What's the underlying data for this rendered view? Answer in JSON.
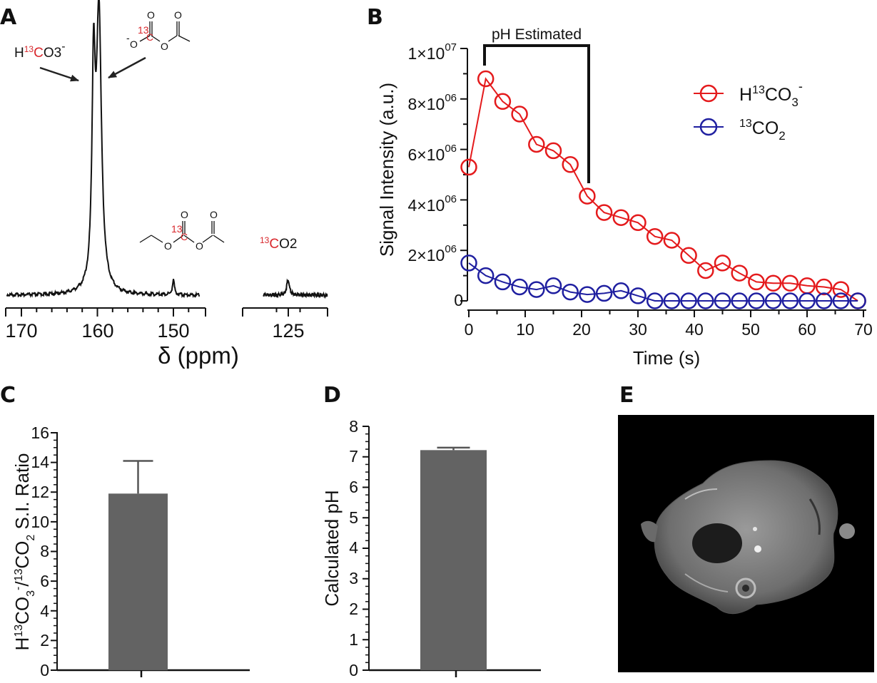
{
  "chart_data": [
    {
      "id": "A",
      "type": "line",
      "panel_label": "A",
      "title": "",
      "xlabel": "δ (ppm)",
      "ylabel": "",
      "x_ticks": [
        "170",
        "160",
        "150",
        "125"
      ],
      "x_segments": [
        [
          172,
          146
        ],
        [
          136,
          116
        ]
      ],
      "grid": false,
      "peaks": [
        {
          "ppm": 160.5,
          "height": 0.74,
          "width": 0.25
        },
        {
          "ppm": 159.8,
          "height": 1.0,
          "width": 0.4
        },
        {
          "ppm": 150.0,
          "height": 0.055,
          "width": 0.15
        },
        {
          "ppm": 125.1,
          "height": 0.055,
          "width": 0.7
        }
      ],
      "annotations": {
        "bicarbonate": {
          "prefix": "H",
          "iso": "13",
          "label_c": "C",
          "label_o3": "O3",
          "charge": "-"
        },
        "co2": {
          "iso": "13",
          "label_c": "C",
          "label_o2": "O2"
        },
        "struct1": {
          "o_minus": "O",
          "charge": "-",
          "o_top": "O",
          "iso": "13",
          "c": "C",
          "o_mid": "O",
          "o_right": "O"
        },
        "struct2": {
          "o1": "O",
          "iso": "13",
          "c": "C",
          "o_top": "O",
          "o2": "O",
          "o_right": "O"
        }
      }
    },
    {
      "id": "B",
      "type": "line",
      "panel_label": "B",
      "title": "",
      "xlabel": "Time (s)",
      "ylabel": "Signal Intensity (a.u.)",
      "xlim": [
        0,
        70
      ],
      "ylim": [
        0,
        10000000
      ],
      "x_ticks": [
        0,
        10,
        20,
        30,
        40,
        50,
        60,
        70
      ],
      "y_ticks": [
        {
          "value": 0,
          "label": "0"
        },
        {
          "value": 2000000,
          "mantissa": "2×10",
          "exp": "06"
        },
        {
          "value": 4000000,
          "mantissa": "4×10",
          "exp": "06"
        },
        {
          "value": 6000000,
          "mantissa": "6×10",
          "exp": "06"
        },
        {
          "value": 8000000,
          "mantissa": "8×10",
          "exp": "06"
        },
        {
          "value": 10000000,
          "mantissa": "1×10",
          "exp": "07"
        }
      ],
      "x": [
        0,
        3,
        6,
        9,
        12,
        15,
        18,
        21,
        24,
        27,
        30,
        33,
        36,
        39,
        42,
        45,
        48,
        51,
        54,
        57,
        60,
        63,
        66,
        69
      ],
      "series": [
        {
          "name": "H13CO3-",
          "color": "#e41a1c",
          "values": [
            5300000,
            8800000,
            7900000,
            7400000,
            6200000,
            5950000,
            5400000,
            4150000,
            3500000,
            3300000,
            3100000,
            2550000,
            2400000,
            1800000,
            1200000,
            1500000,
            1100000,
            750000,
            700000,
            700000,
            600000,
            550000,
            450000,
            0
          ]
        },
        {
          "name": "13CO2",
          "color": "#1f1fa0",
          "values": [
            1500000,
            1000000,
            750000,
            550000,
            450000,
            600000,
            350000,
            250000,
            300000,
            400000,
            200000,
            0,
            0,
            0,
            0,
            0,
            0,
            0,
            0,
            0,
            0,
            0,
            0,
            0
          ]
        }
      ],
      "legend": {
        "position": "right",
        "entries": [
          {
            "prefix": "H",
            "iso": "13",
            "main": "CO",
            "sub": "3",
            "charge": "-",
            "color": "#e41a1c"
          },
          {
            "iso": "13",
            "main": "CO",
            "sub": "2",
            "color": "#1f1fa0"
          }
        ]
      },
      "annotation": {
        "text": "pH Estimated",
        "x_start": 3,
        "x_end": 21
      }
    },
    {
      "id": "C",
      "type": "bar",
      "panel_label": "C",
      "title": "",
      "xlabel": "",
      "ylabel_parts": {
        "pre": "H",
        "iso1": "13",
        "mid1": "CO",
        "sub1": "3",
        "charge": "-",
        "slash": "/",
        "iso2": "13",
        "mid2": "CO",
        "sub2": "2",
        "post": " S.I. Ratio"
      },
      "ylim": [
        0,
        16
      ],
      "y_ticks": [
        0,
        2,
        4,
        6,
        8,
        10,
        12,
        14,
        16
      ],
      "categories": [
        ""
      ],
      "values": [
        11.9
      ],
      "error": [
        2.2
      ],
      "bar_color": "#636363"
    },
    {
      "id": "D",
      "type": "bar",
      "panel_label": "D",
      "title": "",
      "xlabel": "",
      "ylabel": "Calculated pH",
      "ylim": [
        0,
        8
      ],
      "y_ticks": [
        0,
        1,
        2,
        3,
        4,
        5,
        6,
        7,
        8
      ],
      "categories": [
        ""
      ],
      "values": [
        7.22
      ],
      "error": [
        0.08
      ],
      "bar_color": "#636363"
    },
    {
      "id": "E",
      "type": "image",
      "panel_label": "E",
      "title": "",
      "xlabel": "",
      "ylabel": ""
    }
  ]
}
